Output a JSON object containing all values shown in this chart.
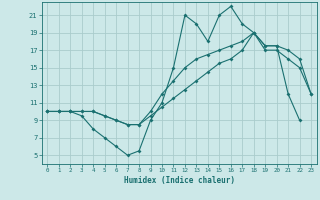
{
  "xlabel": "Humidex (Indice chaleur)",
  "bg_color": "#cce8e8",
  "grid_color": "#aacccc",
  "line_color": "#1a7070",
  "xlim": [
    -0.5,
    23.5
  ],
  "ylim": [
    4,
    22.5
  ],
  "xticks": [
    0,
    1,
    2,
    3,
    4,
    5,
    6,
    7,
    8,
    9,
    10,
    11,
    12,
    13,
    14,
    15,
    16,
    17,
    18,
    19,
    20,
    21,
    22,
    23
  ],
  "yticks": [
    5,
    7,
    9,
    11,
    13,
    15,
    17,
    19,
    21
  ],
  "line1_x": [
    0,
    1,
    2,
    3,
    4,
    5,
    6,
    7,
    8,
    9,
    10,
    11,
    12,
    13,
    14,
    15,
    16,
    17,
    18,
    19,
    20,
    21,
    22,
    23
  ],
  "line1_y": [
    10,
    10,
    10,
    9.5,
    8,
    7,
    6,
    5,
    5.5,
    9,
    11,
    15,
    21,
    20,
    18,
    21,
    22,
    20,
    19,
    17.5,
    17.5,
    12,
    9,
    null
  ],
  "line2_x": [
    0,
    1,
    2,
    3,
    4,
    5,
    6,
    7,
    8,
    9,
    10,
    11,
    12,
    13,
    14,
    15,
    16,
    17,
    18,
    19,
    20,
    21,
    22,
    23
  ],
  "line2_y": [
    10,
    10,
    10,
    10,
    10,
    9.5,
    9,
    8.5,
    8.5,
    10,
    12,
    13.5,
    15,
    16,
    16.5,
    17,
    17.5,
    18,
    19,
    17.5,
    17.5,
    17,
    16,
    12
  ],
  "line3_x": [
    0,
    1,
    2,
    3,
    4,
    5,
    6,
    7,
    8,
    9,
    10,
    11,
    12,
    13,
    14,
    15,
    16,
    17,
    18,
    19,
    20,
    21,
    22,
    23
  ],
  "line3_y": [
    10,
    10,
    10,
    10,
    10,
    9.5,
    9,
    8.5,
    8.5,
    9.5,
    10.5,
    11.5,
    12.5,
    13.5,
    14.5,
    15.5,
    16,
    17,
    19,
    17,
    17,
    16,
    15,
    12
  ]
}
